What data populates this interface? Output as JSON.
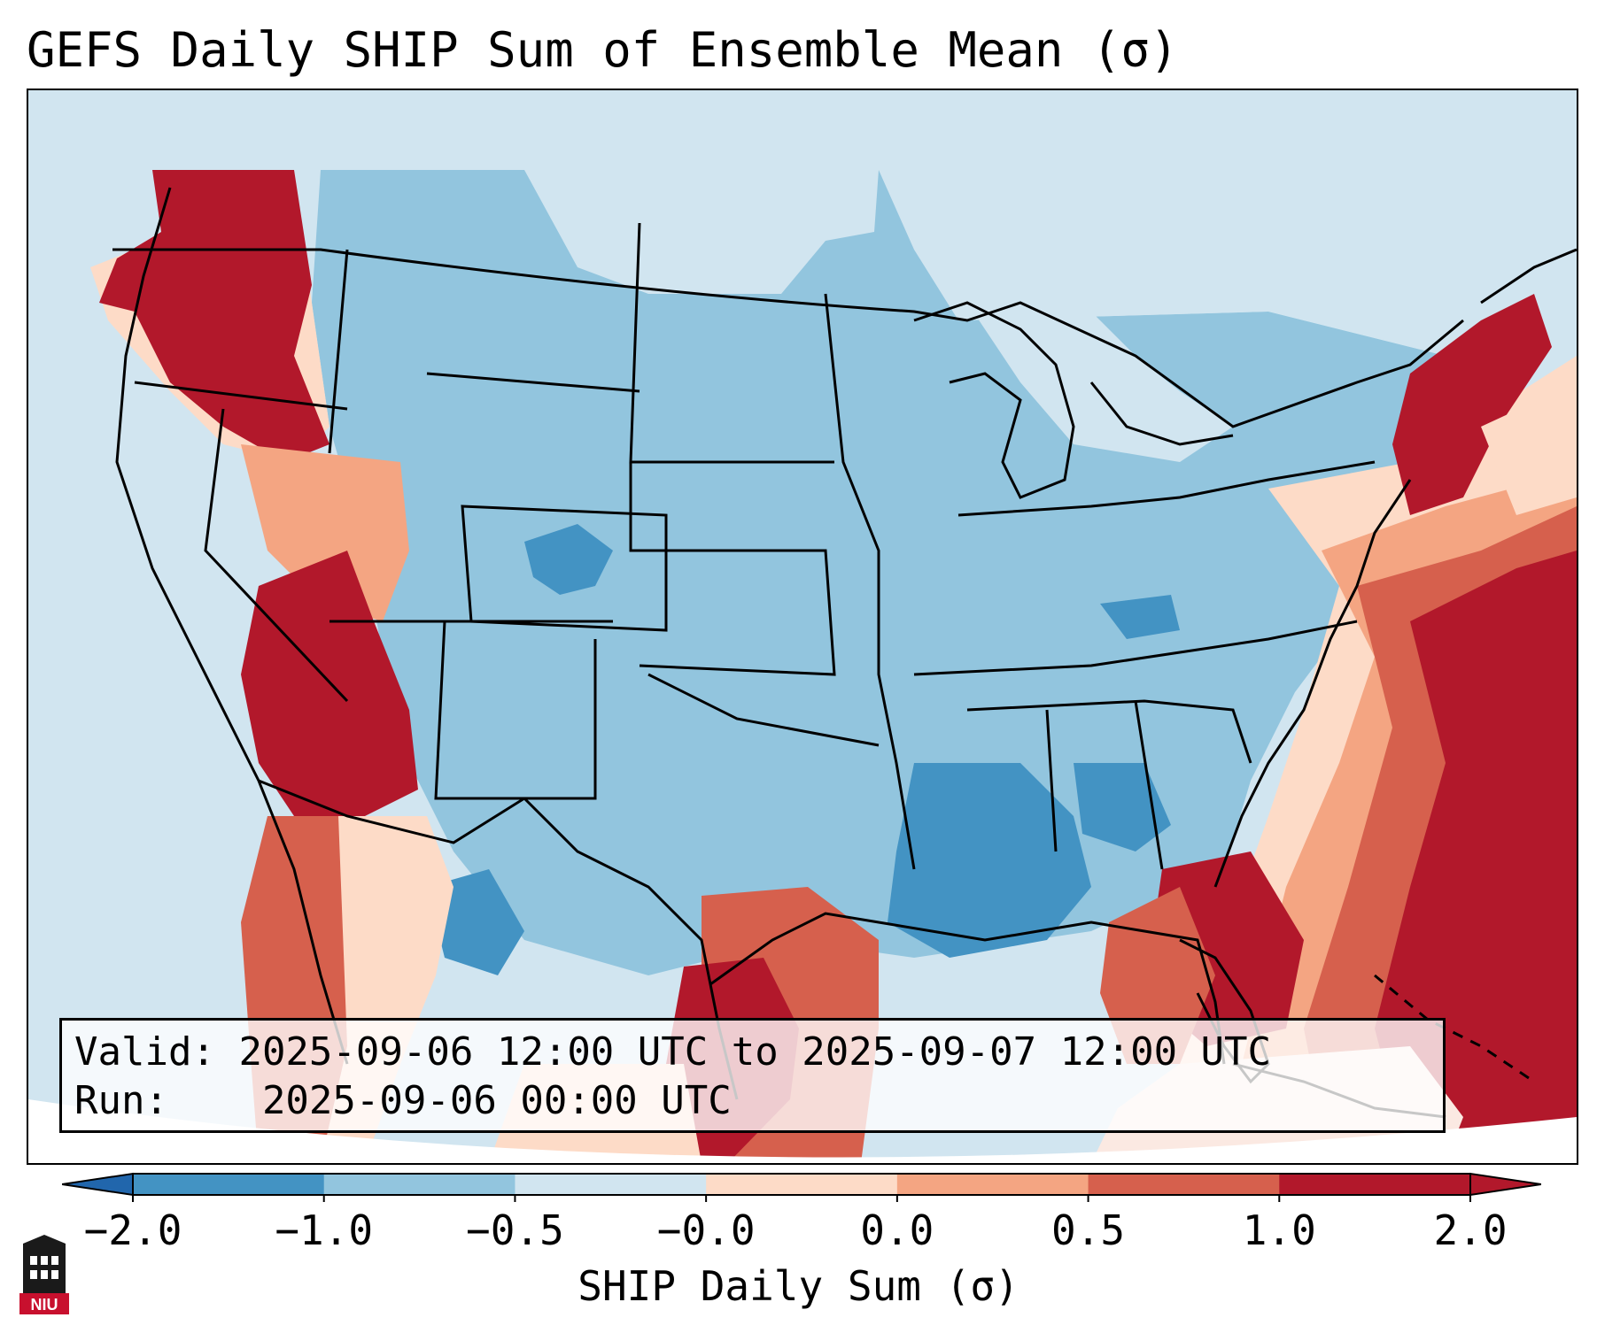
{
  "title": "GEFS Daily SHIP Sum of Ensemble Mean (σ)",
  "info": {
    "valid_label": "Valid:",
    "valid_value": "2025-09-06 12:00 UTC to 2025-09-07 12:00 UTC",
    "run_label": "Run:",
    "run_value": "2025-09-06 00:00 UTC"
  },
  "colorbar": {
    "label": "SHIP Daily Sum (σ)",
    "ticks": [
      "−2.0",
      "−1.0",
      "−0.5",
      "−0.0",
      "0.0",
      "0.5",
      "1.0",
      "2.0"
    ],
    "colors": [
      "#4393c3",
      "#92c5de",
      "#d1e5f0",
      "#fddbc7",
      "#f4a582",
      "#d6604d",
      "#b2182b"
    ],
    "under_color": "#2166ac",
    "over_color": "#b2182b"
  },
  "map": {
    "background_color": "#d1e5f0",
    "outside_projection_color": "#ffffff",
    "region_colors": {
      "strong_negative": "#4393c3",
      "negative": "#92c5de",
      "slight_negative": "#d1e5f0",
      "slight_positive": "#fddbc7",
      "positive": "#f4a582",
      "moderate_positive": "#d6604d",
      "strong_positive": "#b2182b"
    }
  },
  "logo": {
    "text": "NIU"
  }
}
